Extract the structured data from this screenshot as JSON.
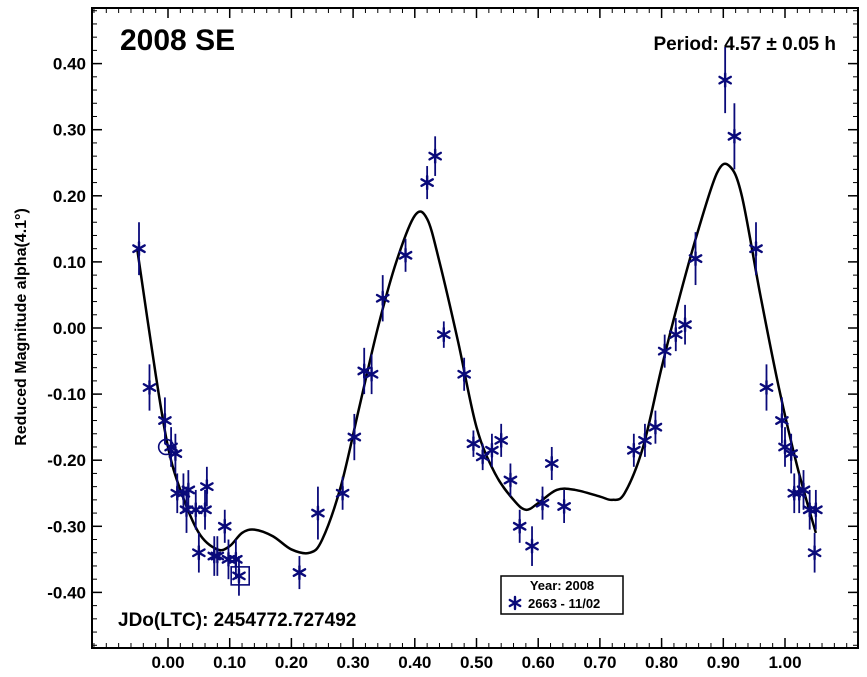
{
  "chart_data": {
    "type": "scatter",
    "title": "2008 SE",
    "period_text": "Period: 4.57 ± 0.05 h",
    "ylabel": "Reduced Magnitude alpha(4.1°)",
    "xlabel": "",
    "jdo_text": "JDo(LTC): 2454772.727492",
    "xlim": [
      -0.12,
      1.12
    ],
    "ylim": [
      0.5,
      -0.5
    ],
    "y_inverted": true,
    "x_ticks": [
      "0.00",
      "0.10",
      "0.20",
      "0.30",
      "0.40",
      "0.50",
      "0.60",
      "0.70",
      "0.80",
      "0.90",
      "1.00"
    ],
    "y_ticks": [
      "-0.40",
      "-0.30",
      "-0.20",
      "-0.10",
      "0.00",
      "0.10",
      "0.20",
      "0.30",
      "0.40"
    ],
    "colors": {
      "points": "#0a0a7a",
      "curve": "#000000",
      "axes": "#000000"
    },
    "legend": {
      "placement": "bottom-center",
      "title": "Year: 2008",
      "entries": [
        {
          "label": "2663 - 11/02",
          "marker": "asterisk",
          "color": "#0a0a7a"
        }
      ]
    },
    "special_markers": [
      {
        "shape": "circle",
        "x": -0.003,
        "y": -0.18
      },
      {
        "shape": "square",
        "x": 0.117,
        "y": -0.375
      }
    ],
    "series": [
      {
        "name": "2663 - 11/02",
        "points": [
          {
            "x": -0.047,
            "y": 0.12,
            "err": 0.04
          },
          {
            "x": -0.03,
            "y": -0.09,
            "err": 0.035
          },
          {
            "x": -0.005,
            "y": -0.14,
            "err": 0.035
          },
          {
            "x": 0.005,
            "y": -0.18,
            "err": 0.03
          },
          {
            "x": 0.012,
            "y": -0.19,
            "err": 0.03
          },
          {
            "x": 0.015,
            "y": -0.25,
            "err": 0.03
          },
          {
            "x": 0.025,
            "y": -0.25,
            "err": 0.03
          },
          {
            "x": 0.03,
            "y": -0.275,
            "err": 0.035
          },
          {
            "x": 0.033,
            "y": -0.245,
            "err": 0.03
          },
          {
            "x": 0.045,
            "y": -0.275,
            "err": 0.03
          },
          {
            "x": 0.05,
            "y": -0.34,
            "err": 0.03
          },
          {
            "x": 0.06,
            "y": -0.275,
            "err": 0.03
          },
          {
            "x": 0.063,
            "y": -0.24,
            "err": 0.03
          },
          {
            "x": 0.075,
            "y": -0.345,
            "err": 0.03
          },
          {
            "x": 0.08,
            "y": -0.345,
            "err": 0.03
          },
          {
            "x": 0.092,
            "y": -0.3,
            "err": 0.025
          },
          {
            "x": 0.098,
            "y": -0.35,
            "err": 0.03
          },
          {
            "x": 0.11,
            "y": -0.35,
            "err": 0.03
          },
          {
            "x": 0.115,
            "y": -0.375,
            "err": 0.03
          },
          {
            "x": 0.213,
            "y": -0.37,
            "err": 0.025
          },
          {
            "x": 0.243,
            "y": -0.28,
            "err": 0.04
          },
          {
            "x": 0.283,
            "y": -0.25,
            "err": 0.025
          },
          {
            "x": 0.302,
            "y": -0.165,
            "err": 0.035
          },
          {
            "x": 0.318,
            "y": -0.065,
            "err": 0.035
          },
          {
            "x": 0.33,
            "y": -0.07,
            "err": 0.03
          },
          {
            "x": 0.348,
            "y": 0.045,
            "err": 0.035
          },
          {
            "x": 0.385,
            "y": 0.11,
            "err": 0.025
          },
          {
            "x": 0.42,
            "y": 0.22,
            "err": 0.025
          },
          {
            "x": 0.433,
            "y": 0.26,
            "err": 0.03
          },
          {
            "x": 0.447,
            "y": -0.01,
            "err": 0.02
          },
          {
            "x": 0.48,
            "y": -0.07,
            "err": 0.025
          },
          {
            "x": 0.495,
            "y": -0.175,
            "err": 0.02
          },
          {
            "x": 0.51,
            "y": -0.195,
            "err": 0.02
          },
          {
            "x": 0.525,
            "y": -0.185,
            "err": 0.025
          },
          {
            "x": 0.54,
            "y": -0.17,
            "err": 0.025
          },
          {
            "x": 0.555,
            "y": -0.23,
            "err": 0.025
          },
          {
            "x": 0.57,
            "y": -0.3,
            "err": 0.025
          },
          {
            "x": 0.59,
            "y": -0.33,
            "err": 0.03
          },
          {
            "x": 0.607,
            "y": -0.265,
            "err": 0.025
          },
          {
            "x": 0.622,
            "y": -0.205,
            "err": 0.025
          },
          {
            "x": 0.642,
            "y": -0.27,
            "err": 0.025
          },
          {
            "x": 0.755,
            "y": -0.185,
            "err": 0.025
          },
          {
            "x": 0.773,
            "y": -0.17,
            "err": 0.025
          },
          {
            "x": 0.79,
            "y": -0.15,
            "err": 0.025
          },
          {
            "x": 0.805,
            "y": -0.035,
            "err": 0.025
          },
          {
            "x": 0.823,
            "y": -0.01,
            "err": 0.025
          },
          {
            "x": 0.838,
            "y": 0.005,
            "err": 0.03
          },
          {
            "x": 0.855,
            "y": 0.105,
            "err": 0.04
          },
          {
            "x": 0.903,
            "y": 0.375,
            "err": 0.05
          },
          {
            "x": 0.918,
            "y": 0.29,
            "err": 0.05
          },
          {
            "x": 0.953,
            "y": 0.12,
            "err": 0.04
          },
          {
            "x": 0.97,
            "y": -0.09,
            "err": 0.035
          },
          {
            "x": 0.995,
            "y": -0.14,
            "err": 0.035
          },
          {
            "x": 1.0,
            "y": -0.18,
            "err": 0.03
          },
          {
            "x": 1.01,
            "y": -0.19,
            "err": 0.03
          },
          {
            "x": 1.015,
            "y": -0.25,
            "err": 0.03
          },
          {
            "x": 1.023,
            "y": -0.25,
            "err": 0.03
          },
          {
            "x": 1.03,
            "y": -0.245,
            "err": 0.03
          },
          {
            "x": 1.04,
            "y": -0.275,
            "err": 0.03
          },
          {
            "x": 1.048,
            "y": -0.34,
            "err": 0.03
          },
          {
            "x": 1.05,
            "y": -0.275,
            "err": 0.03
          }
        ]
      }
    ],
    "fit_curve": {
      "name": "Fourier fit",
      "points": [
        [
          -0.05,
          0.12
        ],
        [
          -0.02,
          -0.07
        ],
        [
          0.0,
          -0.18
        ],
        [
          0.02,
          -0.245
        ],
        [
          0.05,
          -0.31
        ],
        [
          0.08,
          -0.335
        ],
        [
          0.1,
          -0.33
        ],
        [
          0.12,
          -0.31
        ],
        [
          0.14,
          -0.305
        ],
        [
          0.17,
          -0.315
        ],
        [
          0.2,
          -0.335
        ],
        [
          0.23,
          -0.34
        ],
        [
          0.25,
          -0.32
        ],
        [
          0.28,
          -0.24
        ],
        [
          0.31,
          -0.12
        ],
        [
          0.34,
          0.0
        ],
        [
          0.37,
          0.1
        ],
        [
          0.4,
          0.17
        ],
        [
          0.42,
          0.165
        ],
        [
          0.44,
          0.1
        ],
        [
          0.47,
          -0.02
        ],
        [
          0.5,
          -0.15
        ],
        [
          0.53,
          -0.22
        ],
        [
          0.56,
          -0.26
        ],
        [
          0.58,
          -0.275
        ],
        [
          0.6,
          -0.265
        ],
        [
          0.63,
          -0.245
        ],
        [
          0.66,
          -0.245
        ],
        [
          0.7,
          -0.255
        ],
        [
          0.72,
          -0.26
        ],
        [
          0.74,
          -0.25
        ],
        [
          0.77,
          -0.18
        ],
        [
          0.8,
          -0.06
        ],
        [
          0.83,
          0.05
        ],
        [
          0.86,
          0.15
        ],
        [
          0.89,
          0.235
        ],
        [
          0.91,
          0.245
        ],
        [
          0.93,
          0.2
        ],
        [
          0.96,
          0.05
        ],
        [
          0.99,
          -0.09
        ],
        [
          1.02,
          -0.21
        ],
        [
          1.05,
          -0.31
        ]
      ]
    }
  }
}
